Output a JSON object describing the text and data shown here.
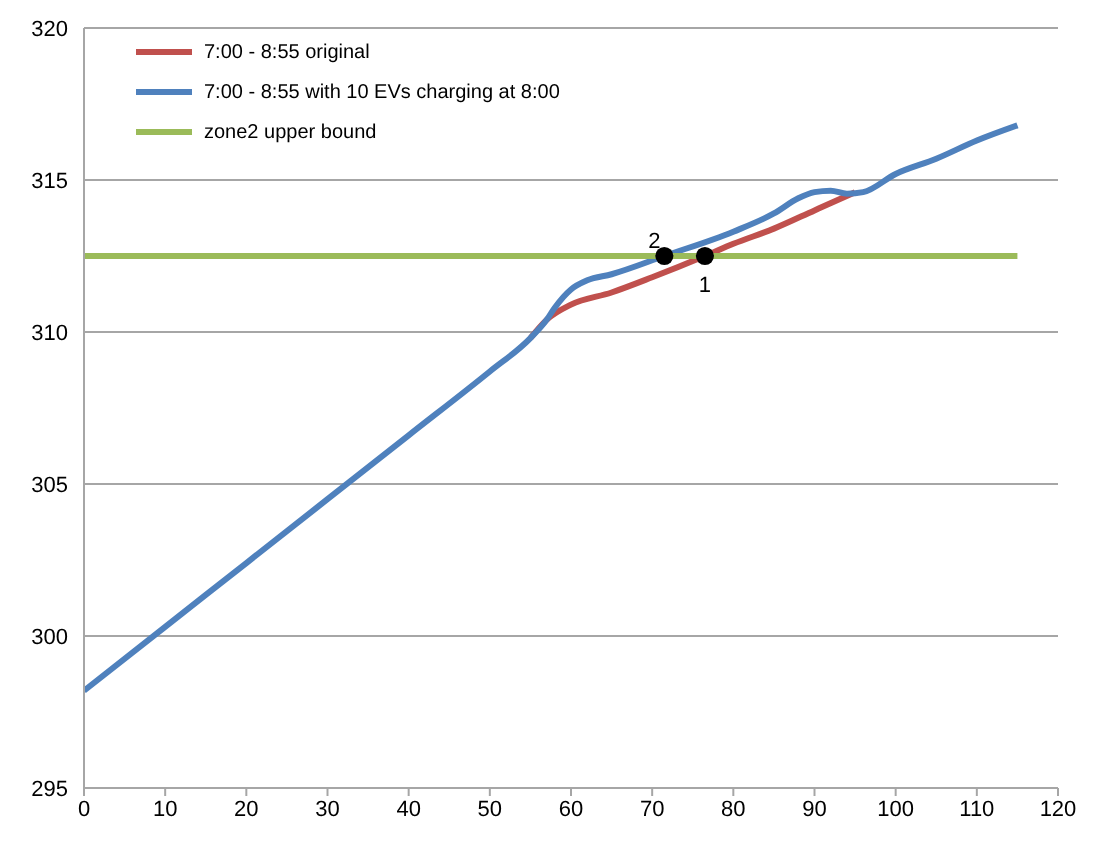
{
  "chart_data": {
    "type": "line",
    "xlim": [
      0,
      120
    ],
    "xticks": [
      0,
      10,
      20,
      30,
      40,
      50,
      60,
      70,
      80,
      90,
      100,
      110,
      120
    ],
    "ylim": [
      295,
      320
    ],
    "yticks": [
      295,
      300,
      305,
      310,
      315,
      320
    ],
    "grid": "y",
    "legend": "top left",
    "marker": "none",
    "line_style": "solid",
    "series": [
      {
        "name": "7:00 - 8:55 original",
        "color": "#c0504d",
        "x": [
          55,
          57,
          60,
          65,
          70,
          76.5,
          80,
          85,
          90,
          95
        ],
        "values": [
          309.8,
          310.4,
          310.9,
          311.3,
          311.8,
          312.5,
          312.9,
          313.4,
          314.0,
          314.6
        ]
      },
      {
        "name": "7:00 - 8:55 with 10 EVs charging at 8:00",
        "color": "#4f81bd",
        "x": [
          0,
          10,
          20,
          30,
          40,
          50,
          55,
          57,
          58,
          60,
          62,
          65,
          71.5,
          80,
          85,
          88,
          90,
          92,
          94,
          96,
          100,
          105,
          110,
          115
        ],
        "values": [
          298.2,
          300.3,
          302.4,
          304.5,
          306.6,
          308.7,
          309.8,
          310.4,
          310.8,
          311.4,
          311.7,
          311.9,
          312.5,
          313.3,
          313.9,
          314.4,
          314.6,
          314.65,
          314.55,
          314.6,
          315.2,
          315.7,
          316.3,
          316.8
        ]
      },
      {
        "name": "zone2 upper bound",
        "color": "#9bbb59",
        "x": [
          0,
          115
        ],
        "values": [
          312.5,
          312.5
        ]
      },
      {
        "type": "scatter",
        "color": "#000000",
        "marker": "circle",
        "x": [
          76.5,
          71.5
        ],
        "values": [
          312.5,
          312.5
        ]
      }
    ],
    "annotations": [
      {
        "text": "1",
        "x": 76.5,
        "y": 312.5
      },
      {
        "text": "2",
        "x": 71.5,
        "y": 312.5
      }
    ]
  }
}
